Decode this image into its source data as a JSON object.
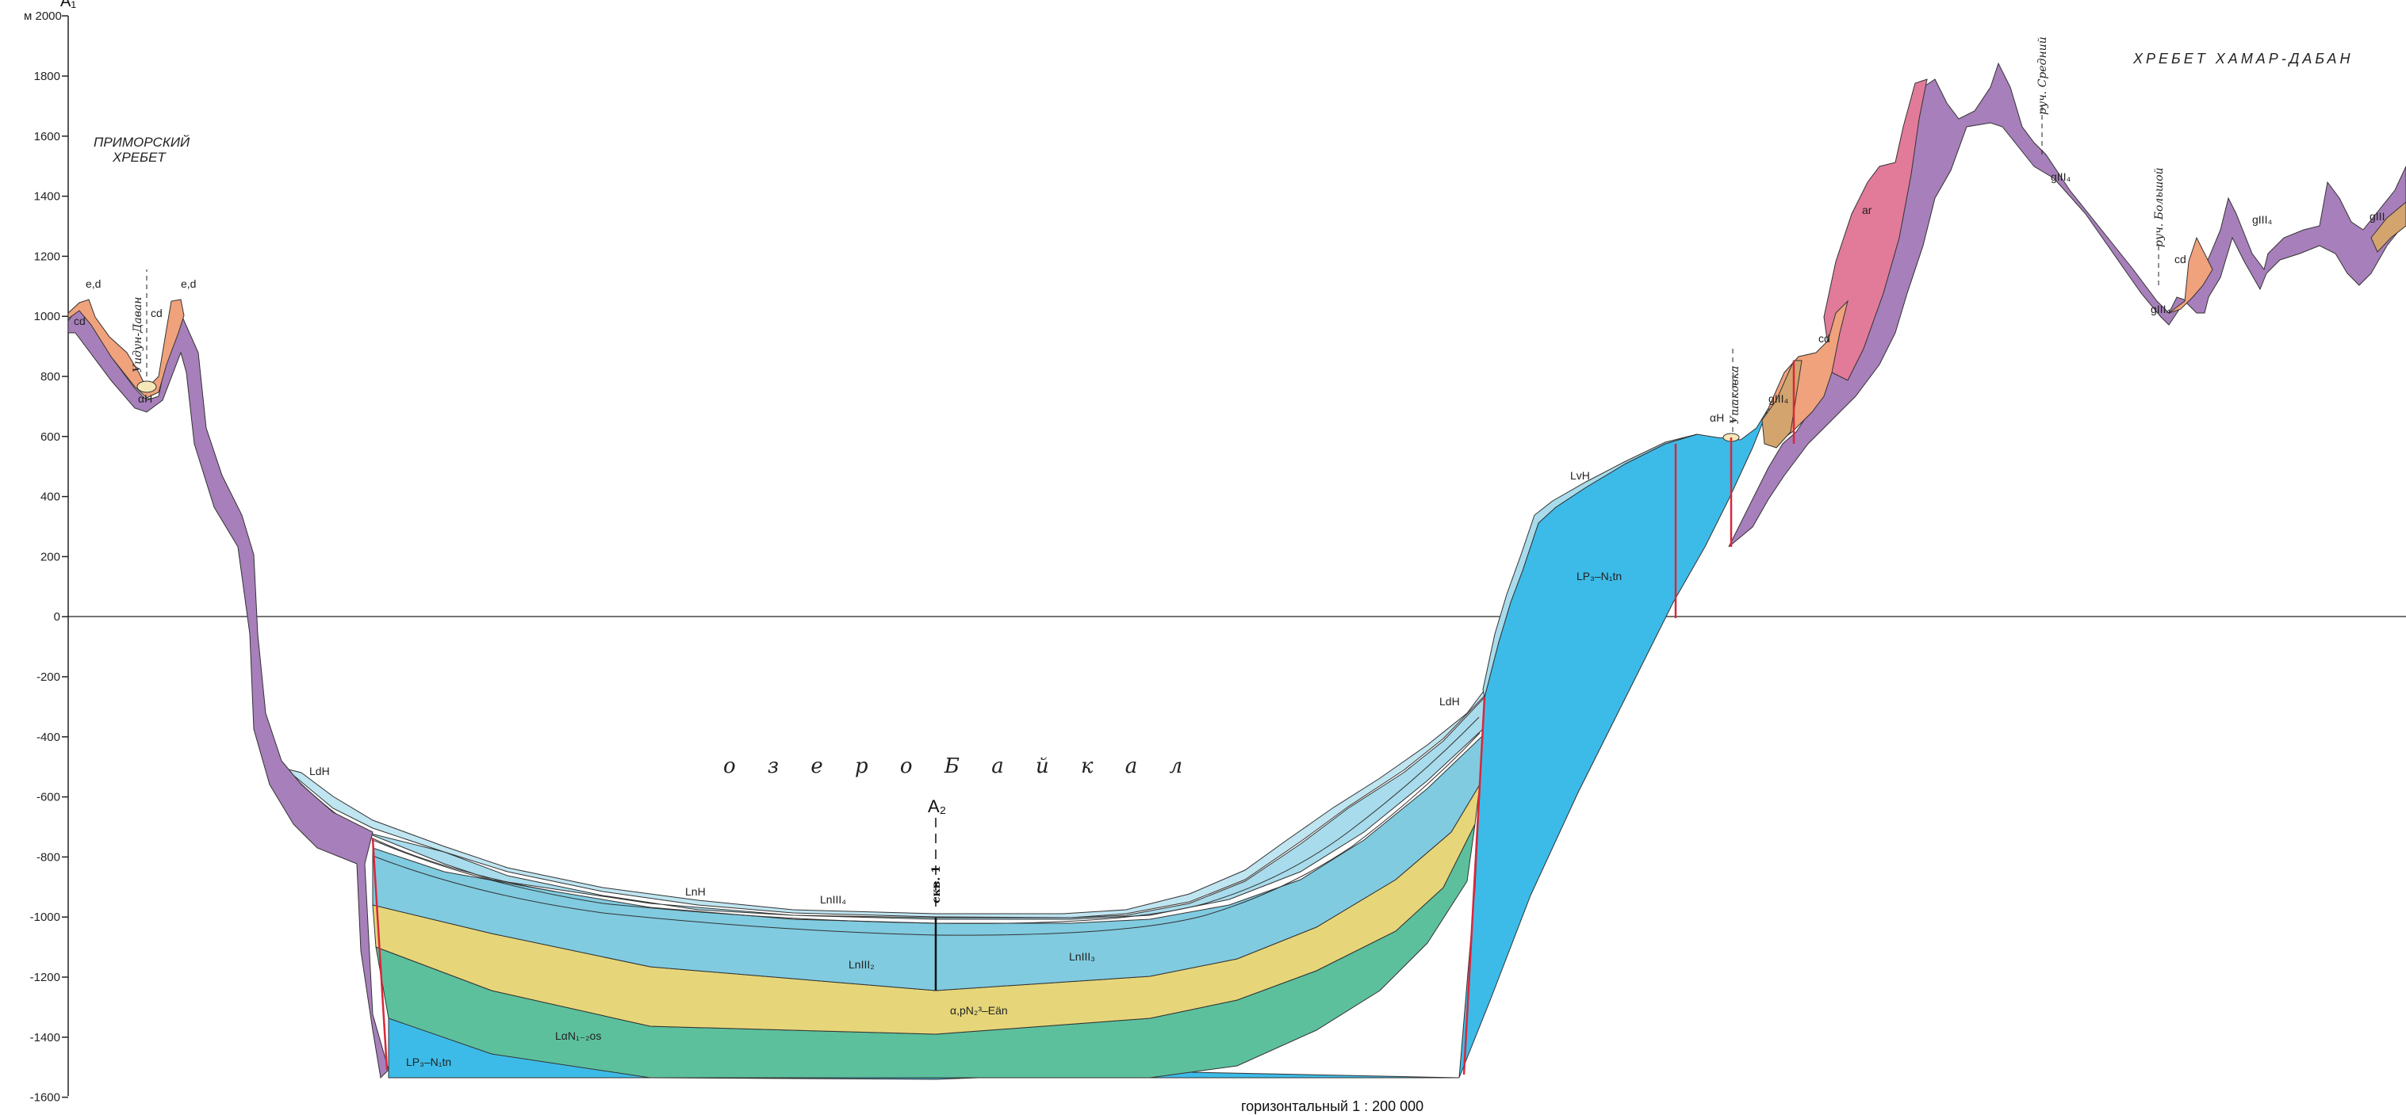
{
  "profile": {
    "corner_label": "A₁",
    "axis_top_label": "м 2000",
    "axis_ticks": [
      "1800",
      "1600",
      "1400",
      "1200",
      "1000",
      "800",
      "600",
      "400",
      "200",
      "0",
      "-200",
      "-400",
      "-600",
      "-800",
      "-1000",
      "-1200",
      "-1400",
      "-1600"
    ],
    "primorsky_line1": "ПРИМОРСКИЙ",
    "primorsky_line2": "ХРЕБЕТ",
    "khamar_daban": "ХРЕБЕТ ХАМАР-ДАБАН",
    "lake_name": "о з е р о   Б а й к а л",
    "well_marker": "A₂",
    "well_label": "скв. 1",
    "scale_text": "горизонтальный 1 : 200 000",
    "streams": {
      "udun": "Уидун-Даван",
      "ushakovka": "Ушаковка",
      "sredny": "руч. Средний",
      "bolshoy": "руч. Большой"
    },
    "units": {
      "ed_left": "e,d",
      "cd_left_small": "cd",
      "cd_left": "cd",
      "ed_right": "e,d",
      "aH_left": "αH",
      "ldH_left": "LdH",
      "lnH": "LnH",
      "lnIII4": "LnIII₄",
      "lnIII2": "LnIII₂",
      "lnIII3": "LnIII₃",
      "alpN": "α,pN₂³–Eän",
      "laN": "LαN₁₋₂os",
      "lP3_left": "LP₃–N₁tn",
      "ldH_right": "LdH",
      "lvH": "LvH",
      "lP3_right": "LP₃–N₁tn",
      "aH_right": "αH",
      "gIII4_a": "gIII₄",
      "cd_right": "cd",
      "ar": "ar",
      "gIII4_b": "gIII₄",
      "gIII4_c": "gIII₄",
      "cd_far": "cd",
      "gIII4_d": "gIII₄",
      "gIII4_e": "gIII"
    },
    "colors": {
      "basement_purple": "#a77fba",
      "orange_deluvium": "#f0a27c",
      "pink_rock": "#e17b99",
      "light_blue": "#a8dcec",
      "mid_blue": "#80cbe0",
      "yellow": "#e6d679",
      "green": "#5cc09d",
      "cyan_blue": "#3dbbe8",
      "fault_red": "#d9273b",
      "tan": "#d4a46e"
    }
  }
}
